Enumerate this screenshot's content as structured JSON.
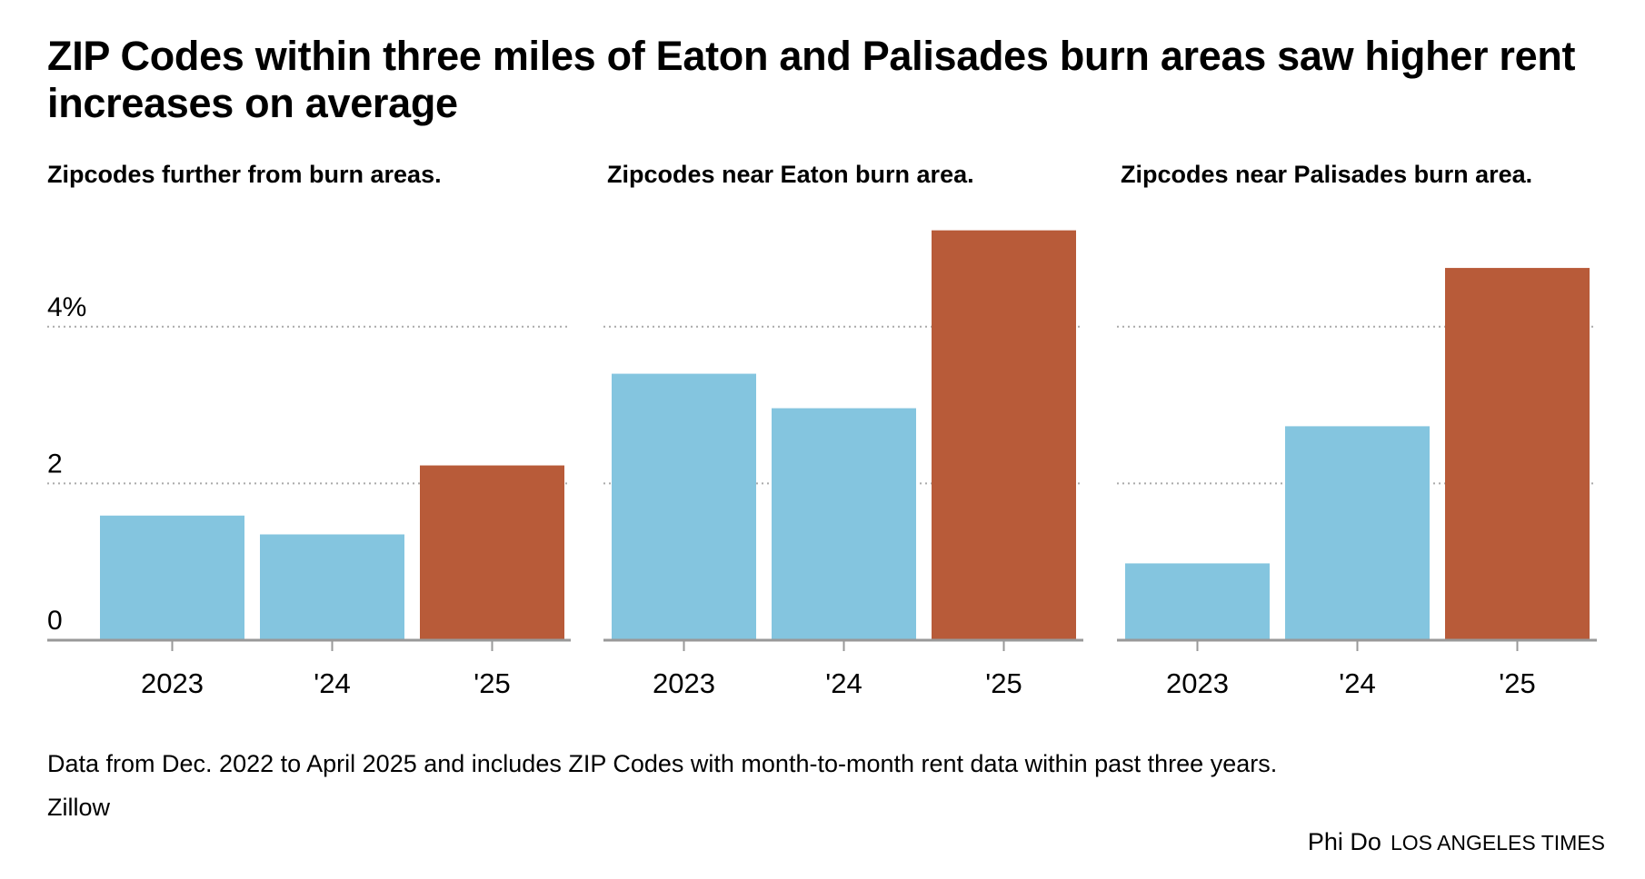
{
  "title": "ZIP Codes within three miles of Eaton and Palisades burn areas saw higher rent increases on average",
  "chart_data": [
    {
      "type": "bar",
      "title": "Zipcodes further from burn areas.",
      "categories": [
        "2023",
        "'24",
        "'25"
      ],
      "values": [
        1.59,
        1.35,
        2.23
      ],
      "ylim": [
        0,
        5.3
      ],
      "yticks": [
        "0",
        "2",
        "4%"
      ],
      "ytick_values": [
        0,
        2,
        4
      ],
      "colors": [
        "#84c5df",
        "#84c5df",
        "#b85b39"
      ]
    },
    {
      "type": "bar",
      "title": "Zipcodes near Eaton burn area.",
      "categories": [
        "2023",
        "'24",
        "'25"
      ],
      "values": [
        3.4,
        2.96,
        5.23
      ],
      "ylim": [
        0,
        5.3
      ],
      "ytick_values": [
        0,
        2,
        4
      ],
      "colors": [
        "#84c5df",
        "#84c5df",
        "#b85b39"
      ]
    },
    {
      "type": "bar",
      "title": "Zipcodes near Palisades burn area.",
      "categories": [
        "2023",
        "'24",
        "'25"
      ],
      "values": [
        0.98,
        2.73,
        4.75
      ],
      "ylim": [
        0,
        5.3
      ],
      "ytick_values": [
        0,
        2,
        4
      ],
      "colors": [
        "#84c5df",
        "#84c5df",
        "#b85b39"
      ]
    }
  ],
  "note": "Data from Dec. 2022 to April 2025 and includes ZIP Codes with month-to-month rent data within past three years.",
  "source": "Zillow",
  "credit": {
    "author": "Phi Do",
    "org": "LOS ANGELES TIMES"
  }
}
